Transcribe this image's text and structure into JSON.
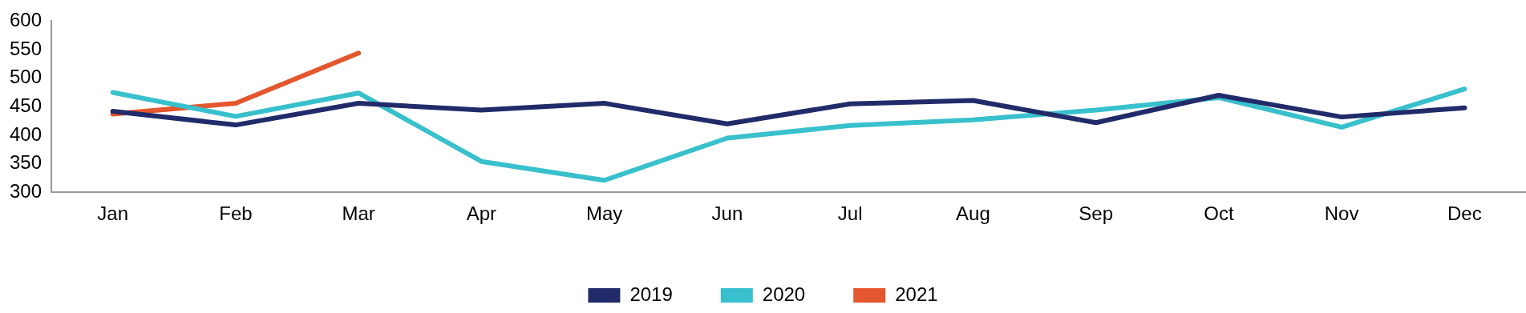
{
  "chart_data": {
    "type": "line",
    "categories": [
      "Jan",
      "Feb",
      "Mar",
      "Apr",
      "May",
      "Jun",
      "Jul",
      "Aug",
      "Sep",
      "Oct",
      "Nov",
      "Dec"
    ],
    "series": [
      {
        "name": "2019",
        "color": "#222b6a",
        "values": [
          442,
          418,
          456,
          444,
          456,
          420,
          455,
          461,
          422,
          470,
          432,
          448
        ]
      },
      {
        "name": "2020",
        "color": "#38c0cc",
        "values": [
          475,
          433,
          474,
          354,
          321,
          395,
          417,
          427,
          444,
          466,
          414,
          481
        ]
      },
      {
        "name": "2021",
        "color": "#e4572e",
        "values": [
          437,
          456,
          544,
          null,
          null,
          null,
          null,
          null,
          null,
          null,
          null,
          null
        ]
      }
    ],
    "ylim": [
      300,
      600
    ],
    "yticks": [
      300,
      350,
      400,
      450,
      500,
      550,
      600
    ],
    "grid": false,
    "legend": "bottom",
    "marker": "none",
    "line_style": "solid"
  }
}
